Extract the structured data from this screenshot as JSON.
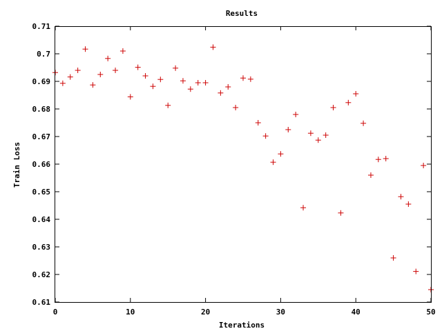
{
  "chart_data": {
    "type": "scatter",
    "title": "Results",
    "xlabel": "Iterations",
    "ylabel": "Train Loss",
    "xlim": [
      0,
      50
    ],
    "ylim": [
      0.61,
      0.71
    ],
    "xticks": [
      "0",
      "10",
      "20",
      "30",
      "40",
      "50"
    ],
    "yticks": [
      "0.61",
      "0.62",
      "0.63",
      "0.64",
      "0.65",
      "0.66",
      "0.67",
      "0.68",
      "0.69",
      "0.7",
      "0.71"
    ],
    "grid": false,
    "marker": "+",
    "color": "#cc0000",
    "series": [
      {
        "x": [
          0,
          1,
          2,
          3,
          4,
          5,
          6,
          7,
          8,
          9,
          10,
          11,
          12,
          13,
          14,
          15,
          16,
          17,
          18,
          19,
          20,
          21,
          22,
          23,
          24,
          25,
          26,
          27,
          28,
          29,
          30,
          31,
          32,
          33,
          34,
          35,
          36,
          37,
          38,
          39,
          40,
          41,
          42,
          43,
          44,
          45,
          46,
          47,
          48,
          49,
          50
        ],
        "y": [
          0.6932,
          0.6893,
          0.6916,
          0.694,
          0.7017,
          0.6887,
          0.6925,
          0.6983,
          0.694,
          0.701,
          0.6844,
          0.6951,
          0.692,
          0.6882,
          0.6907,
          0.6813,
          0.6948,
          0.6902,
          0.6872,
          0.6895,
          0.6895,
          0.7024,
          0.6858,
          0.688,
          0.6805,
          0.6912,
          0.6908,
          0.675,
          0.6702,
          0.6607,
          0.6637,
          0.6725,
          0.678,
          0.6442,
          0.6712,
          0.6687,
          0.6705,
          0.6805,
          0.6423,
          0.6823,
          0.6855,
          0.6748,
          0.656,
          0.6617,
          0.662,
          0.626,
          0.6482,
          0.6455,
          0.6211,
          0.6595,
          0.6145
        ]
      }
    ]
  }
}
